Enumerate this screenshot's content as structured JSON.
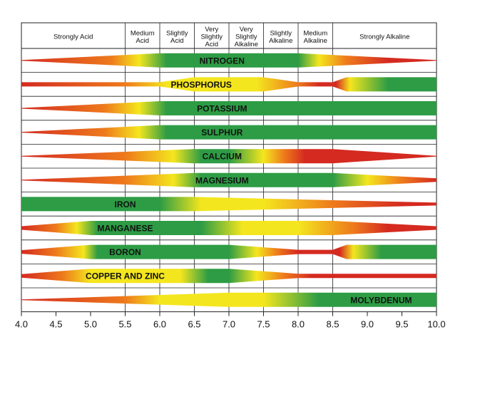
{
  "chart_data": {
    "type": "band",
    "xlim": [
      4.0,
      10.0
    ],
    "x_ticks": [
      "4.0",
      "4.5",
      "5.0",
      "5.5",
      "6.0",
      "6.5",
      "7.0",
      "7.5",
      "8.0",
      "8.5",
      "9.0",
      "9.5",
      "10.0"
    ],
    "x_tick_values": [
      4.0,
      4.5,
      5.0,
      5.5,
      6.0,
      6.5,
      7.0,
      7.5,
      8.0,
      8.5,
      9.0,
      9.5,
      10.0
    ],
    "header_categories": [
      {
        "label": [
          "Strongly Acid"
        ],
        "from": 4.0,
        "to": 5.5
      },
      {
        "label": [
          "Medium",
          "Acid"
        ],
        "from": 5.5,
        "to": 6.0
      },
      {
        "label": [
          "Slightly",
          "Acid"
        ],
        "from": 6.0,
        "to": 6.5
      },
      {
        "label": [
          "Very",
          "Slightly",
          "Acid"
        ],
        "from": 6.5,
        "to": 7.0
      },
      {
        "label": [
          "Very",
          "Slightly",
          "Alkaline"
        ],
        "from": 7.0,
        "to": 7.5
      },
      {
        "label": [
          "Slightly",
          "Alkaline"
        ],
        "from": 7.5,
        "to": 8.0
      },
      {
        "label": [
          "Medium",
          "Alkaline"
        ],
        "from": 8.0,
        "to": 8.5
      },
      {
        "label": [
          "Strongly Alkaline"
        ],
        "from": 8.5,
        "to": 10.0
      }
    ],
    "colors": {
      "red": "#d42a20",
      "orange": "#ee7a1c",
      "yellow": "#f4e61e",
      "green": "#2d9c45"
    },
    "nutrients": [
      {
        "name": "NITROGEN",
        "label_at": 6.9,
        "width": [
          [
            4.0,
            0.05
          ],
          [
            6.0,
            1.0
          ],
          [
            8.0,
            1.0
          ],
          [
            10.0,
            0.05
          ]
        ],
        "colors": [
          [
            4.0,
            "red"
          ],
          [
            5.3,
            "orange"
          ],
          [
            5.7,
            "yellow"
          ],
          [
            6.1,
            "green"
          ],
          [
            8.0,
            "green"
          ],
          [
            8.3,
            "yellow"
          ],
          [
            8.7,
            "orange"
          ],
          [
            9.3,
            "red"
          ],
          [
            10.0,
            "red"
          ]
        ]
      },
      {
        "name": "PHOSPHORUS",
        "label_at": 6.6,
        "width": [
          [
            4.0,
            0.3
          ],
          [
            6.0,
            0.3
          ],
          [
            6.5,
            1.0
          ],
          [
            7.5,
            1.0
          ],
          [
            8.0,
            0.3
          ],
          [
            8.5,
            0.3
          ],
          [
            8.7,
            1.0
          ],
          [
            10.0,
            1.0
          ]
        ],
        "colors": [
          [
            4.0,
            "red"
          ],
          [
            5.5,
            "orange"
          ],
          [
            6.1,
            "yellow"
          ],
          [
            7.4,
            "yellow"
          ],
          [
            8.0,
            "orange"
          ],
          [
            8.3,
            "red"
          ],
          [
            8.55,
            "red"
          ],
          [
            8.75,
            "yellow"
          ],
          [
            9.3,
            "green"
          ],
          [
            10.0,
            "green"
          ]
        ]
      },
      {
        "name": "POTASSIUM",
        "label_at": 6.9,
        "width": [
          [
            4.0,
            0.05
          ],
          [
            6.0,
            1.0
          ],
          [
            10.0,
            1.0
          ]
        ],
        "colors": [
          [
            4.0,
            "red"
          ],
          [
            5.2,
            "orange"
          ],
          [
            5.7,
            "yellow"
          ],
          [
            6.1,
            "green"
          ],
          [
            10.0,
            "green"
          ]
        ]
      },
      {
        "name": "SULPHUR",
        "label_at": 6.9,
        "width": [
          [
            4.0,
            0.05
          ],
          [
            6.0,
            1.0
          ],
          [
            10.0,
            1.0
          ]
        ],
        "colors": [
          [
            4.0,
            "red"
          ],
          [
            5.2,
            "orange"
          ],
          [
            5.7,
            "yellow"
          ],
          [
            6.1,
            "green"
          ],
          [
            10.0,
            "green"
          ]
        ]
      },
      {
        "name": "CALCIUM",
        "label_at": 6.9,
        "width": [
          [
            4.0,
            0.05
          ],
          [
            6.5,
            1.0
          ],
          [
            8.5,
            1.0
          ],
          [
            10.0,
            0.05
          ]
        ],
        "colors": [
          [
            4.0,
            "red"
          ],
          [
            5.5,
            "orange"
          ],
          [
            6.2,
            "yellow"
          ],
          [
            6.6,
            "green"
          ],
          [
            7.0,
            "green"
          ],
          [
            7.5,
            "yellow"
          ],
          [
            7.8,
            "orange"
          ],
          [
            8.1,
            "red"
          ],
          [
            10.0,
            "red"
          ]
        ]
      },
      {
        "name": "MAGNESIUM",
        "label_at": 6.9,
        "width": [
          [
            4.0,
            0.05
          ],
          [
            6.5,
            1.0
          ],
          [
            8.5,
            1.0
          ],
          [
            10.0,
            0.25
          ]
        ],
        "colors": [
          [
            4.0,
            "red"
          ],
          [
            5.5,
            "orange"
          ],
          [
            6.2,
            "yellow"
          ],
          [
            6.6,
            "green"
          ],
          [
            8.5,
            "green"
          ],
          [
            9.0,
            "yellow"
          ],
          [
            9.5,
            "orange"
          ],
          [
            10.0,
            "red"
          ]
        ]
      },
      {
        "name": "IRON",
        "label_at": 5.5,
        "width": [
          [
            4.0,
            1.0
          ],
          [
            6.5,
            1.0
          ],
          [
            10.0,
            0.2
          ]
        ],
        "colors": [
          [
            4.0,
            "green"
          ],
          [
            6.0,
            "green"
          ],
          [
            6.6,
            "yellow"
          ],
          [
            7.5,
            "yellow"
          ],
          [
            8.5,
            "orange"
          ],
          [
            9.5,
            "red"
          ],
          [
            10.0,
            "red"
          ]
        ]
      },
      {
        "name": "MANGANESE",
        "label_at": 5.5,
        "width": [
          [
            4.0,
            0.25
          ],
          [
            5.0,
            1.0
          ],
          [
            8.5,
            1.0
          ],
          [
            10.0,
            0.25
          ]
        ],
        "colors": [
          [
            4.0,
            "red"
          ],
          [
            4.5,
            "orange"
          ],
          [
            4.8,
            "yellow"
          ],
          [
            5.1,
            "green"
          ],
          [
            6.6,
            "green"
          ],
          [
            7.2,
            "yellow"
          ],
          [
            8.0,
            "yellow"
          ],
          [
            8.8,
            "orange"
          ],
          [
            9.3,
            "red"
          ],
          [
            10.0,
            "red"
          ]
        ]
      },
      {
        "name": "BORON",
        "label_at": 5.5,
        "width": [
          [
            4.0,
            0.25
          ],
          [
            5.0,
            1.0
          ],
          [
            7.0,
            1.0
          ],
          [
            8.0,
            0.3
          ],
          [
            8.5,
            0.3
          ],
          [
            8.7,
            1.0
          ],
          [
            10.0,
            1.0
          ]
        ],
        "colors": [
          [
            4.0,
            "red"
          ],
          [
            4.5,
            "orange"
          ],
          [
            4.9,
            "yellow"
          ],
          [
            5.1,
            "green"
          ],
          [
            7.0,
            "green"
          ],
          [
            7.4,
            "yellow"
          ],
          [
            7.7,
            "orange"
          ],
          [
            8.0,
            "red"
          ],
          [
            8.6,
            "red"
          ],
          [
            8.8,
            "yellow"
          ],
          [
            9.2,
            "green"
          ],
          [
            10.0,
            "green"
          ]
        ]
      },
      {
        "name": "COPPER AND ZINC",
        "label_at": 5.5,
        "width": [
          [
            4.0,
            0.25
          ],
          [
            5.0,
            1.0
          ],
          [
            7.0,
            1.0
          ],
          [
            8.0,
            0.3
          ],
          [
            10.0,
            0.3
          ]
        ],
        "colors": [
          [
            4.0,
            "red"
          ],
          [
            4.6,
            "orange"
          ],
          [
            5.0,
            "yellow"
          ],
          [
            6.3,
            "yellow"
          ],
          [
            6.7,
            "green"
          ],
          [
            7.0,
            "green"
          ],
          [
            7.4,
            "yellow"
          ],
          [
            7.8,
            "orange"
          ],
          [
            8.2,
            "red"
          ],
          [
            10.0,
            "red"
          ]
        ]
      },
      {
        "name": "MOLYBDENUM",
        "label_at": 9.2,
        "width": [
          [
            4.0,
            0.05
          ],
          [
            7.0,
            1.0
          ],
          [
            10.0,
            1.0
          ]
        ],
        "colors": [
          [
            4.0,
            "red"
          ],
          [
            5.5,
            "orange"
          ],
          [
            6.0,
            "yellow"
          ],
          [
            7.5,
            "yellow"
          ],
          [
            8.3,
            "green"
          ],
          [
            10.0,
            "green"
          ]
        ]
      }
    ]
  }
}
